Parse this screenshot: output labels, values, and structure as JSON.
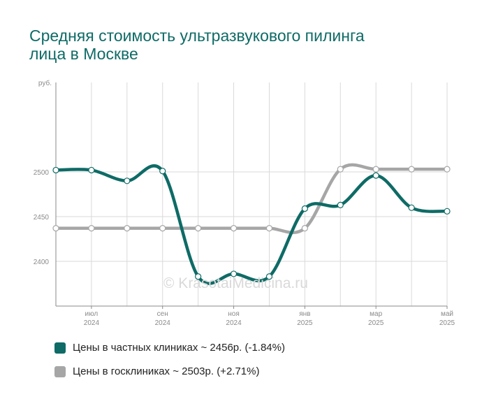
{
  "title_lines": [
    "Средняя стоимость ультразвукового пилинга",
    "лица в Москве"
  ],
  "watermark": "© KrasotaiMedicina.ru",
  "colors": {
    "private": "#0e6b66",
    "public": "#a6a6a6",
    "grid": "#d9d9d9",
    "axis": "#8a8a8a"
  },
  "chart_data": {
    "type": "line",
    "title": "Средняя стоимость ультразвукового пилинга лица в Москве",
    "xlabel": "",
    "ylabel": "руб.",
    "ylim": [
      2350,
      2600
    ],
    "yticks": [
      2400,
      2450,
      2500
    ],
    "grid": true,
    "legend_position": "bottom-left",
    "x": [
      "2024-06",
      "2024-07",
      "2024-08",
      "2024-09",
      "2024-10",
      "2024-11",
      "2024-12",
      "2025-01",
      "2025-02",
      "2025-03",
      "2025-04",
      "2025-05"
    ],
    "xtick_labels": [
      {
        "at": "2024-07",
        "month": "июл",
        "year": "2024"
      },
      {
        "at": "2024-09",
        "month": "сен",
        "year": "2024"
      },
      {
        "at": "2024-11",
        "month": "ноя",
        "year": "2024"
      },
      {
        "at": "2025-01",
        "month": "янв",
        "year": "2025"
      },
      {
        "at": "2025-03",
        "month": "мар",
        "year": "2025"
      },
      {
        "at": "2025-05",
        "month": "май",
        "year": "2025"
      }
    ],
    "series": [
      {
        "name": "Цены в частных клиниках",
        "legend_label": "Цены в частных клиниках ~ 2456р. (-1.84%)",
        "color": "#0e6b66",
        "values": [
          2502,
          2502,
          2490,
          2501,
          2383,
          2386,
          2383,
          2459,
          2463,
          2496,
          2460,
          2456
        ]
      },
      {
        "name": "Цены в госклиниках",
        "legend_label": "Цены в госклиниках ~ 2503р. (+2.71%)",
        "color": "#a6a6a6",
        "values": [
          2437,
          2437,
          2437,
          2437,
          2437,
          2437,
          2437,
          2437,
          2503,
          2503,
          2503,
          2503
        ]
      }
    ]
  }
}
